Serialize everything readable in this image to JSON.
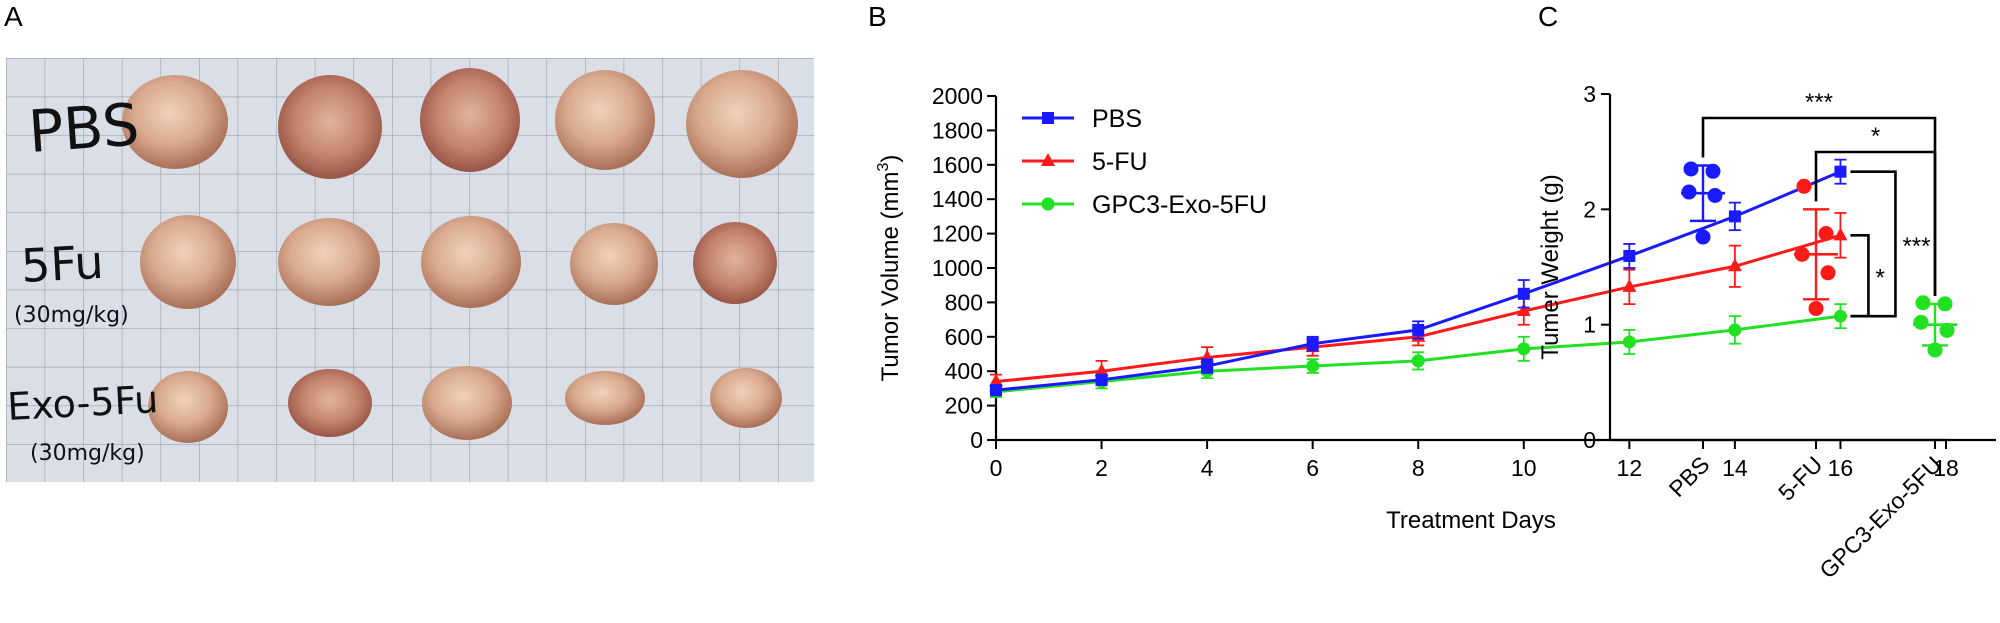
{
  "panels": {
    "a": {
      "letter": "A",
      "row_labels": [
        "PBS",
        "5Fu",
        "(30mg/kg)",
        "Exo-5Fu",
        "(30mg/kg)"
      ]
    },
    "b": {
      "letter": "B"
    },
    "c": {
      "letter": "C"
    }
  },
  "chart_data": [
    {
      "type": "line",
      "panel": "B",
      "title": "",
      "xlabel": "Treatment Days",
      "ylabel_prefix": "Tumor Volume (mm",
      "ylabel_sup": "3",
      "ylabel_suffix": ")",
      "xlim": [
        0,
        18
      ],
      "ylim": [
        0,
        2000
      ],
      "xticks": [
        0,
        2,
        4,
        6,
        8,
        10,
        12,
        14,
        16,
        18
      ],
      "yticks": [
        0,
        200,
        400,
        600,
        800,
        1000,
        1200,
        1400,
        1600,
        1800,
        2000
      ],
      "legend_position": "top-left",
      "x": [
        0,
        2,
        4,
        6,
        8,
        10,
        12,
        14,
        16
      ],
      "series": [
        {
          "name": "PBS",
          "color": "#1a1aff",
          "marker": "square",
          "values": [
            290,
            350,
            430,
            560,
            640,
            850,
            1070,
            1300,
            1560
          ],
          "errors": [
            30,
            30,
            40,
            40,
            50,
            80,
            70,
            80,
            70
          ]
        },
        {
          "name": "5-FU",
          "color": "#ff1a1a",
          "marker": "triangle",
          "values": [
            340,
            400,
            480,
            540,
            600,
            750,
            890,
            1010,
            1190
          ],
          "errors": [
            40,
            60,
            60,
            50,
            50,
            80,
            100,
            120,
            130
          ]
        },
        {
          "name": "GPC3-Exo-5FU",
          "color": "#22e022",
          "marker": "circle",
          "values": [
            280,
            340,
            400,
            430,
            460,
            530,
            570,
            640,
            720
          ],
          "errors": [
            30,
            40,
            40,
            40,
            50,
            70,
            70,
            80,
            70
          ]
        }
      ],
      "significance": [
        {
          "between": [
            "5-FU",
            "GPC3-Exo-5FU"
          ],
          "label": "*"
        },
        {
          "between": [
            "PBS",
            "GPC3-Exo-5FU"
          ],
          "label": "***"
        }
      ]
    },
    {
      "type": "scatter",
      "panel": "C",
      "title": "",
      "ylabel": "Tumer Weight (g)",
      "xlabel": "",
      "ylim": [
        0,
        3
      ],
      "yticks": [
        0,
        1,
        2,
        3
      ],
      "categories": [
        "PBS",
        "5-FU",
        "GPC3-Exo-5FU"
      ],
      "groups": [
        {
          "name": "PBS",
          "color": "#1a1aff",
          "points": [
            2.35,
            2.33,
            2.15,
            2.12,
            1.76
          ],
          "mean": 2.14,
          "sd": 0.24
        },
        {
          "name": "5-FU",
          "color": "#ff1a1a",
          "points": [
            2.2,
            1.79,
            1.61,
            1.45,
            1.14
          ],
          "mean": 1.61,
          "sd": 0.39
        },
        {
          "name": "GPC3-Exo-5FU",
          "color": "#22e022",
          "points": [
            1.19,
            1.18,
            1.02,
            0.95,
            0.78
          ],
          "mean": 1.0,
          "sd": 0.18
        }
      ],
      "significance": [
        {
          "between": [
            "PBS",
            "GPC3-Exo-5FU"
          ],
          "label": "***"
        },
        {
          "between": [
            "5-FU",
            "GPC3-Exo-5FU"
          ],
          "label": "*"
        }
      ]
    }
  ]
}
